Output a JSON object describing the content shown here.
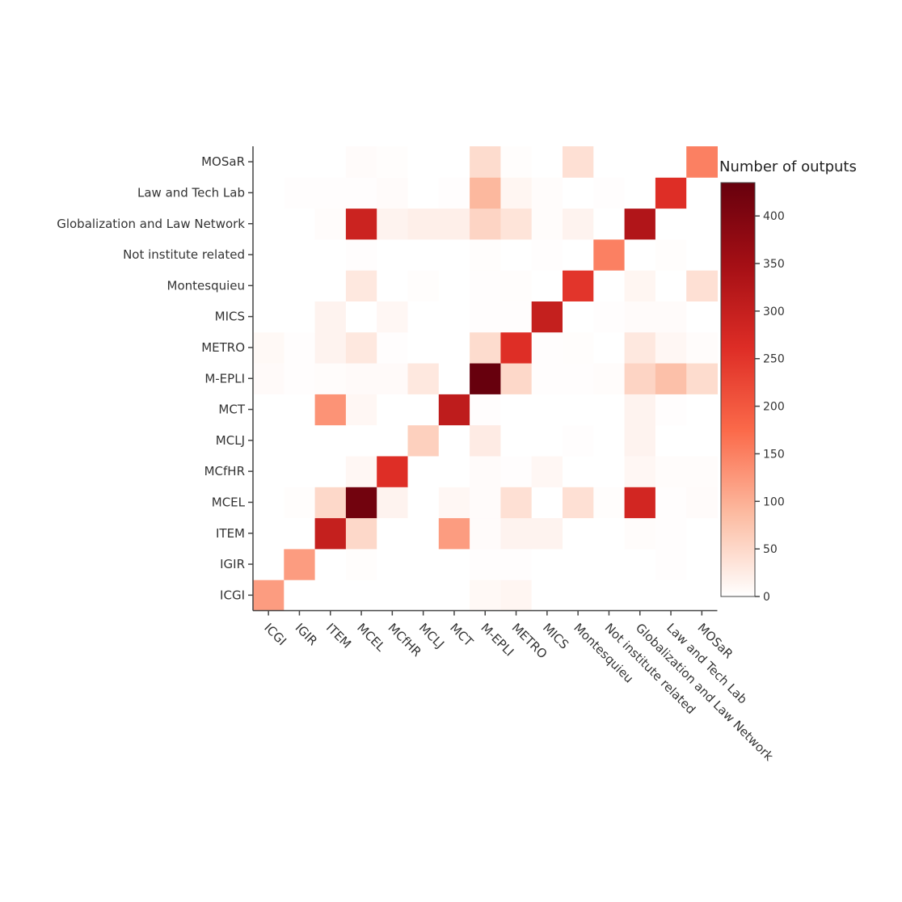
{
  "chart_data": {
    "type": "heatmap",
    "title": "",
    "xlabel": "",
    "ylabel": "",
    "categories": [
      "ICGI",
      "IGIR",
      "ITEM",
      "MCEL",
      "MCfHR",
      "MCLJ",
      "MCT",
      "M-EPLI",
      "METRO",
      "MICS",
      "Montesquieu",
      "Not institute related",
      "Globalization and Law Network",
      "Law and Tech Lab",
      "MOSaR"
    ],
    "x": [
      "ICGI",
      "IGIR",
      "ITEM",
      "MCEL",
      "MCfHR",
      "MCLJ",
      "MCT",
      "M-EPLI",
      "METRO",
      "MICS",
      "Montesquieu",
      "Not institute related",
      "Globalization and Law Network",
      "Law and Tech Lab",
      "MOSaR"
    ],
    "y": [
      "ICGI",
      "IGIR",
      "ITEM",
      "MCEL",
      "MCfHR",
      "MCLJ",
      "MCT",
      "M-EPLI",
      "METRO",
      "MICS",
      "Montesquieu",
      "Not institute related",
      "Globalization and Law Network",
      "Law and Tech Lab",
      "MOSaR"
    ],
    "z": [
      [
        120,
        0,
        0,
        0,
        0,
        0,
        0,
        8,
        12,
        0,
        0,
        0,
        0,
        0,
        0
      ],
      [
        0,
        120,
        0,
        3,
        0,
        0,
        0,
        2,
        2,
        0,
        0,
        0,
        0,
        2,
        0
      ],
      [
        0,
        0,
        300,
        50,
        0,
        0,
        120,
        5,
        15,
        15,
        0,
        0,
        4,
        2,
        0
      ],
      [
        0,
        3,
        50,
        420,
        15,
        0,
        10,
        5,
        40,
        0,
        40,
        3,
        280,
        2,
        5
      ],
      [
        0,
        0,
        0,
        10,
        260,
        0,
        0,
        5,
        2,
        10,
        0,
        0,
        10,
        4,
        4
      ],
      [
        0,
        0,
        0,
        0,
        0,
        60,
        0,
        25,
        0,
        0,
        2,
        0,
        15,
        0,
        0
      ],
      [
        0,
        0,
        130,
        10,
        0,
        0,
        310,
        2,
        0,
        0,
        0,
        0,
        15,
        2,
        0
      ],
      [
        6,
        2,
        4,
        6,
        6,
        30,
        0,
        435,
        50,
        2,
        2,
        4,
        55,
        80,
        45
      ],
      [
        8,
        2,
        15,
        30,
        2,
        0,
        0,
        45,
        260,
        2,
        3,
        0,
        30,
        10,
        4
      ],
      [
        0,
        0,
        15,
        0,
        10,
        0,
        0,
        2,
        2,
        300,
        0,
        2,
        5,
        5,
        0
      ],
      [
        0,
        0,
        0,
        30,
        0,
        3,
        0,
        2,
        3,
        0,
        250,
        0,
        12,
        0,
        40
      ],
      [
        0,
        0,
        0,
        2,
        0,
        0,
        0,
        3,
        0,
        2,
        0,
        150,
        0,
        3,
        0
      ],
      [
        0,
        0,
        4,
        290,
        15,
        20,
        20,
        55,
        35,
        4,
        15,
        0,
        330,
        0,
        0
      ],
      [
        0,
        2,
        2,
        2,
        5,
        0,
        2,
        90,
        12,
        4,
        0,
        2,
        0,
        260,
        0
      ],
      [
        0,
        0,
        0,
        5,
        3,
        0,
        0,
        45,
        3,
        0,
        40,
        0,
        0,
        0,
        150
      ]
    ],
    "colorbar": {
      "title": "Number of outputs",
      "range": [
        0,
        435
      ],
      "ticks": [
        0,
        50,
        100,
        150,
        200,
        250,
        300,
        350,
        400
      ],
      "colors": [
        "#ffffff",
        "#fcbba1",
        "#fb6a4a",
        "#de2d26",
        "#a50f15",
        "#67000d"
      ]
    }
  }
}
